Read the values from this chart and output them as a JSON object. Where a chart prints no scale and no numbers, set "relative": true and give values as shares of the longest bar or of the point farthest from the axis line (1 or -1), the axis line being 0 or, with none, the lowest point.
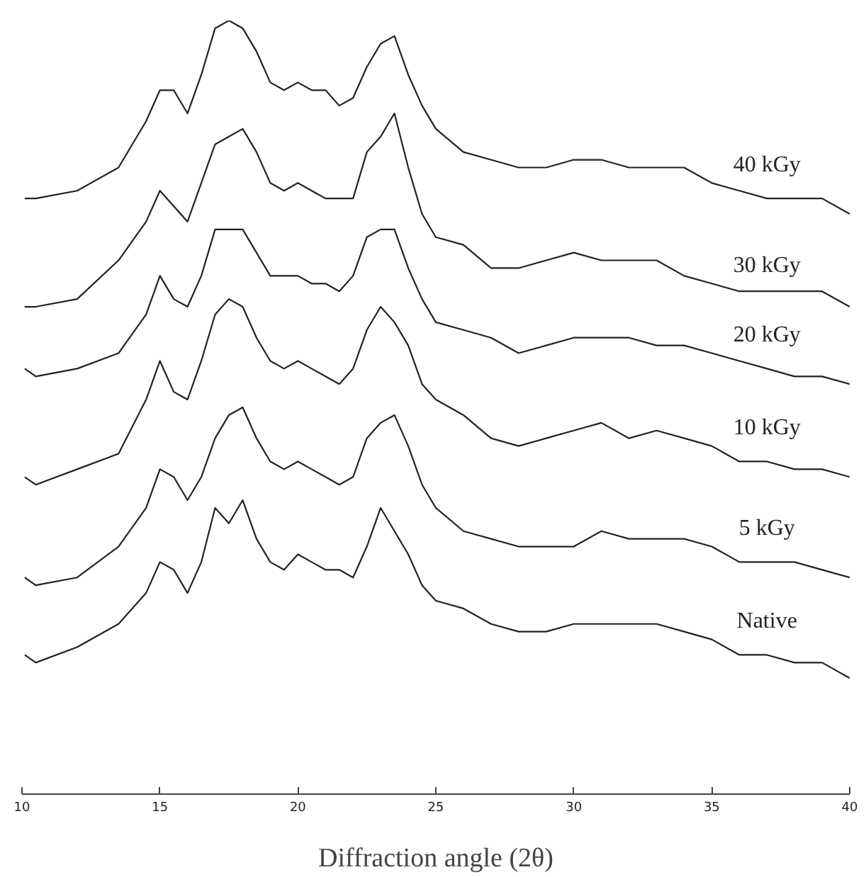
{
  "chart_data": {
    "type": "line",
    "relative": true,
    "xlabel": "Diffraction angle (2θ)",
    "xlim": [
      10,
      40
    ],
    "xticks": [
      10,
      15,
      20,
      25,
      30,
      35,
      40
    ],
    "grid": false,
    "marker": "none",
    "line_style": "solid",
    "tick_labels": "x",
    "x": [
      10.1,
      10.5,
      12,
      13.5,
      14.5,
      15,
      15.5,
      16,
      16.5,
      17,
      17.5,
      18,
      18.5,
      19,
      19.5,
      20,
      20.5,
      21,
      21.5,
      22,
      22.5,
      23,
      23.5,
      24,
      24.5,
      25,
      26,
      27,
      28,
      29,
      30,
      31,
      32,
      33,
      34,
      35,
      36,
      37,
      38,
      39,
      40
    ],
    "series": [
      {
        "name": "40 kGy",
        "color": "#222222",
        "values": [
          0.77,
          0.77,
          0.78,
          0.81,
          0.87,
          0.91,
          0.91,
          0.88,
          0.93,
          0.99,
          1.0,
          0.99,
          0.96,
          0.92,
          0.91,
          0.92,
          0.91,
          0.91,
          0.89,
          0.9,
          0.94,
          0.97,
          0.98,
          0.93,
          0.89,
          0.86,
          0.83,
          0.82,
          0.81,
          0.81,
          0.82,
          0.82,
          0.81,
          0.81,
          0.81,
          0.79,
          0.78,
          0.77,
          0.77,
          0.77,
          0.75
        ]
      },
      {
        "name": "30 kGy",
        "color": "#222222",
        "values": [
          0.63,
          0.63,
          0.64,
          0.69,
          0.74,
          0.78,
          0.76,
          0.74,
          0.79,
          0.84,
          0.85,
          0.86,
          0.83,
          0.79,
          0.78,
          0.79,
          0.78,
          0.77,
          0.77,
          0.77,
          0.83,
          0.85,
          0.88,
          0.81,
          0.75,
          0.72,
          0.71,
          0.68,
          0.68,
          0.69,
          0.7,
          0.69,
          0.69,
          0.69,
          0.67,
          0.66,
          0.65,
          0.65,
          0.65,
          0.65,
          0.63
        ]
      },
      {
        "name": "20 kGy",
        "color": "#222222",
        "values": [
          0.55,
          0.54,
          0.55,
          0.57,
          0.62,
          0.67,
          0.64,
          0.63,
          0.67,
          0.73,
          0.73,
          0.73,
          0.7,
          0.67,
          0.67,
          0.67,
          0.66,
          0.66,
          0.65,
          0.67,
          0.72,
          0.73,
          0.73,
          0.68,
          0.64,
          0.61,
          0.6,
          0.59,
          0.57,
          0.58,
          0.59,
          0.59,
          0.59,
          0.58,
          0.58,
          0.57,
          0.56,
          0.55,
          0.54,
          0.54,
          0.53
        ]
      },
      {
        "name": "10 kGy",
        "color": "#222222",
        "values": [
          0.41,
          0.4,
          0.42,
          0.44,
          0.51,
          0.56,
          0.52,
          0.51,
          0.56,
          0.62,
          0.64,
          0.63,
          0.59,
          0.56,
          0.55,
          0.56,
          0.55,
          0.54,
          0.53,
          0.55,
          0.6,
          0.63,
          0.61,
          0.58,
          0.53,
          0.51,
          0.49,
          0.46,
          0.45,
          0.46,
          0.47,
          0.48,
          0.46,
          0.47,
          0.46,
          0.45,
          0.43,
          0.43,
          0.42,
          0.42,
          0.41
        ]
      },
      {
        "name": "5 kGy",
        "color": "#222222",
        "values": [
          0.28,
          0.27,
          0.28,
          0.32,
          0.37,
          0.42,
          0.41,
          0.38,
          0.41,
          0.46,
          0.49,
          0.5,
          0.46,
          0.43,
          0.42,
          0.43,
          0.42,
          0.41,
          0.4,
          0.41,
          0.46,
          0.48,
          0.49,
          0.45,
          0.4,
          0.37,
          0.34,
          0.33,
          0.32,
          0.32,
          0.32,
          0.34,
          0.33,
          0.33,
          0.33,
          0.32,
          0.3,
          0.3,
          0.3,
          0.29,
          0.28
        ]
      },
      {
        "name": "Native",
        "color": "#222222",
        "values": [
          0.18,
          0.17,
          0.19,
          0.22,
          0.26,
          0.3,
          0.29,
          0.26,
          0.3,
          0.37,
          0.35,
          0.38,
          0.33,
          0.3,
          0.29,
          0.31,
          0.3,
          0.29,
          0.29,
          0.28,
          0.32,
          0.37,
          0.34,
          0.31,
          0.27,
          0.25,
          0.24,
          0.22,
          0.21,
          0.21,
          0.22,
          0.22,
          0.22,
          0.22,
          0.21,
          0.2,
          0.18,
          0.18,
          0.17,
          0.17,
          0.15
        ]
      }
    ]
  }
}
